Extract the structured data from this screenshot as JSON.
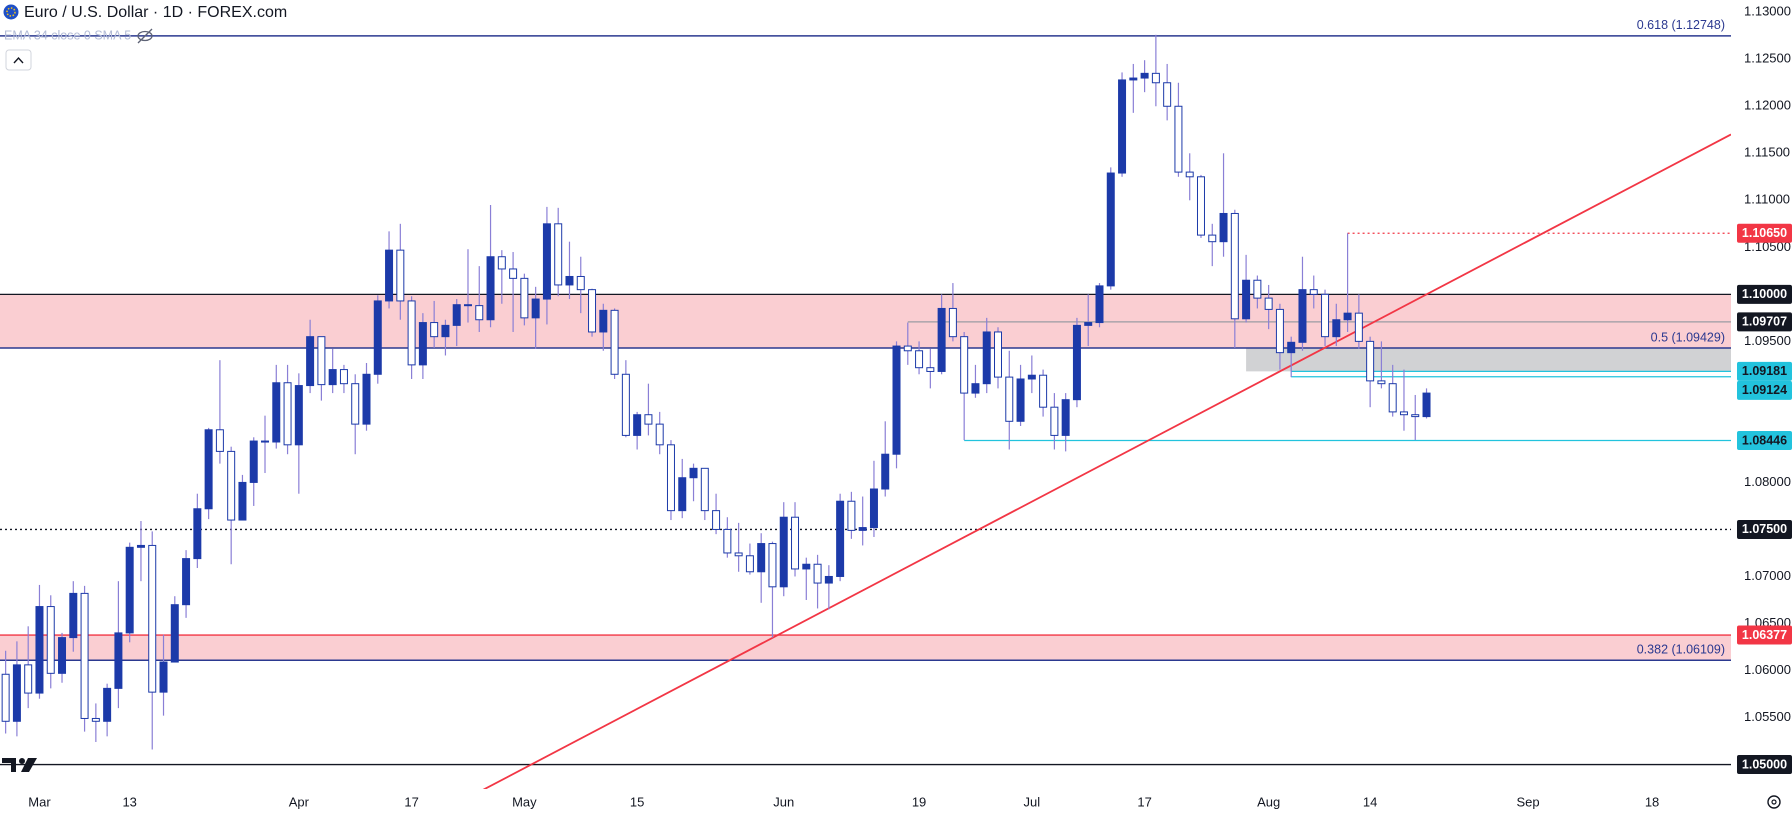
{
  "chart_data": {
    "type": "candlestick",
    "title": "Euro / U.S. Dollar · 1D · FOREX.com",
    "indicator_label": "EMA 34 close 0 SMA 5",
    "open": [
      1.0596,
      1.0546,
      1.0606,
      1.0576,
      1.0668,
      1.0597,
      1.0635,
      1.0682,
      1.0549,
      1.0546,
      1.0581,
      1.064,
      1.0731,
      1.0733,
      1.0577,
      1.0609,
      1.067,
      1.0719,
      1.0772,
      1.0856,
      1.0833,
      1.076,
      1.08,
      1.0844,
      1.0843,
      1.0906,
      1.084,
      1.0903,
      1.0955,
      1.0904,
      1.092,
      1.0905,
      1.0862,
      1.0915,
      1.0993,
      1.1047,
      1.0993,
      1.0925,
      1.097,
      1.0955,
      1.0967,
      1.0989,
      1.0988,
      1.0973,
      1.104,
      1.1027,
      1.1017,
      1.0975,
      1.0995,
      1.1075,
      1.101,
      1.1019,
      1.1005,
      1.096,
      1.0983,
      1.0915,
      1.085,
      1.0872,
      1.0862,
      1.084,
      1.077,
      1.0805,
      1.0815,
      1.077,
      1.075,
      1.0725,
      1.0722,
      1.0705,
      1.0735,
      1.0689,
      1.0763,
      1.0708,
      1.0713,
      1.0693,
      1.07,
      1.078,
      1.0749,
      1.0752,
      1.0793,
      1.083,
      1.0945,
      1.094,
      1.0922,
      1.0918,
      1.0985,
      1.0955,
      1.0895,
      1.0905,
      1.096,
      1.0912,
      1.0865,
      1.091,
      1.0914,
      1.088,
      1.085,
      1.0888,
      1.0967,
      1.097,
      1.1009,
      1.1129,
      1.1228,
      1.123,
      1.1235,
      1.1225,
      1.12,
      1.113,
      1.1125,
      1.1063,
      1.1056,
      1.1086,
      1.0974,
      1.1015,
      1.0996,
      1.0984,
      1.0938,
      1.0949,
      1.1005,
      1.1,
      1.0955,
      1.0973,
      1.098,
      1.095,
      1.0908,
      1.0905,
      1.0875,
      1.0872,
      1.087
    ],
    "high": [
      1.0621,
      1.0631,
      1.0647,
      1.0691,
      1.068,
      1.064,
      1.0695,
      1.069,
      1.0565,
      1.0586,
      1.0695,
      1.0736,
      1.0759,
      1.0748,
      1.0638,
      1.0679,
      1.0728,
      1.0788,
      1.0858,
      1.093,
      1.0838,
      1.0808,
      1.0848,
      1.0871,
      1.0925,
      1.0925,
      1.0916,
      1.0973,
      1.0955,
      1.0942,
      1.0925,
      1.0915,
      1.0927,
      1.0999,
      1.1067,
      1.1075,
      1.0998,
      1.098,
      1.0993,
      1.0973,
      1.0995,
      1.1048,
      1.103,
      1.1095,
      1.1047,
      1.1045,
      1.1022,
      1.1008,
      1.1093,
      1.1092,
      1.1056,
      1.104,
      1.1006,
      1.099,
      1.0985,
      1.093,
      1.0875,
      1.0905,
      1.0875,
      1.0845,
      1.0825,
      1.082,
      1.0815,
      1.0788,
      1.0763,
      1.0757,
      1.0735,
      1.0746,
      1.0737,
      1.0779,
      1.0779,
      1.072,
      1.0723,
      1.0712,
      1.0788,
      1.079,
      1.0785,
      1.0823,
      1.0865,
      1.095,
      1.097,
      1.095,
      1.0942,
      1.1,
      1.1012,
      1.096,
      1.0925,
      1.0975,
      1.0965,
      1.094,
      1.0925,
      1.0935,
      1.092,
      1.0895,
      1.0895,
      1.0975,
      1.1,
      1.1012,
      1.1135,
      1.1236,
      1.1245,
      1.1249,
      1.1276,
      1.1245,
      1.1225,
      1.115,
      1.1127,
      1.1075,
      1.115,
      1.109,
      1.1042,
      1.102,
      1.101,
      1.099,
      1.0955,
      1.104,
      1.102,
      1.1005,
      1.099,
      1.1065,
      1.1,
      1.0955,
      1.095,
      1.0925,
      1.092,
      1.0893,
      1.09
    ],
    "low": [
      1.0533,
      1.053,
      1.056,
      1.057,
      1.0581,
      1.0587,
      1.062,
      1.0535,
      1.0524,
      1.053,
      1.056,
      1.063,
      1.0695,
      1.0516,
      1.0552,
      1.061,
      1.0656,
      1.0709,
      1.0761,
      1.082,
      1.0713,
      1.076,
      1.0775,
      1.081,
      1.0836,
      1.083,
      1.0788,
      1.0895,
      1.0887,
      1.0895,
      1.0895,
      1.083,
      1.0855,
      1.0905,
      1.0985,
      1.0973,
      1.091,
      1.091,
      1.0943,
      1.0935,
      1.0945,
      1.097,
      1.096,
      1.0965,
      1.099,
      1.096,
      1.0967,
      1.0942,
      1.0968,
      1.0998,
      1.0995,
      1.098,
      1.0955,
      1.094,
      1.091,
      1.0848,
      1.0835,
      1.085,
      1.083,
      1.076,
      1.0762,
      1.078,
      1.076,
      1.0745,
      1.072,
      1.0705,
      1.0702,
      1.0672,
      1.0635,
      1.0679,
      1.07,
      1.0675,
      1.0666,
      1.0665,
      1.0695,
      1.074,
      1.0733,
      1.0742,
      1.0785,
      1.0815,
      1.0925,
      1.0915,
      1.09,
      1.0915,
      1.095,
      1.0845,
      1.089,
      1.0895,
      1.09,
      1.0835,
      1.086,
      1.0895,
      1.087,
      1.0835,
      1.0833,
      1.088,
      1.0945,
      1.0965,
      1.1005,
      1.1125,
      1.1193,
      1.1215,
      1.12,
      1.1185,
      1.1125,
      1.11,
      1.106,
      1.103,
      1.104,
      1.0943,
      1.097,
      1.0985,
      1.0963,
      1.092,
      1.0912,
      1.094,
      1.0985,
      1.0945,
      1.0945,
      1.096,
      1.0942,
      1.088,
      1.09,
      1.087,
      1.0855,
      1.0845,
      1.0868
    ],
    "close": [
      1.0546,
      1.0606,
      1.0576,
      1.0668,
      1.0597,
      1.0635,
      1.0682,
      1.0549,
      1.0546,
      1.0581,
      1.064,
      1.0731,
      1.0733,
      1.0577,
      1.0609,
      1.067,
      1.0719,
      1.0772,
      1.0856,
      1.0833,
      1.076,
      1.08,
      1.0844,
      1.0843,
      1.0906,
      1.084,
      1.0903,
      1.0955,
      1.0904,
      1.092,
      1.0905,
      1.0862,
      1.0915,
      1.0993,
      1.1047,
      1.0993,
      1.0925,
      1.097,
      1.0955,
      1.0967,
      1.0989,
      1.0988,
      1.0973,
      1.104,
      1.1027,
      1.1017,
      1.0975,
      1.0995,
      1.1075,
      1.101,
      1.1019,
      1.1005,
      1.096,
      1.0983,
      1.0915,
      1.085,
      1.0872,
      1.0862,
      1.084,
      1.077,
      1.0805,
      1.0815,
      1.077,
      1.075,
      1.0725,
      1.0722,
      1.0705,
      1.0735,
      1.0689,
      1.0763,
      1.0708,
      1.0713,
      1.0693,
      1.07,
      1.078,
      1.0749,
      1.0752,
      1.0793,
      1.083,
      1.0945,
      1.094,
      1.0922,
      1.0918,
      1.0985,
      1.0955,
      1.0895,
      1.0905,
      1.096,
      1.0912,
      1.0865,
      1.091,
      1.0914,
      1.088,
      1.085,
      1.0888,
      1.0967,
      1.097,
      1.1009,
      1.1129,
      1.1228,
      1.123,
      1.1235,
      1.1225,
      1.12,
      1.113,
      1.1125,
      1.1063,
      1.1056,
      1.1086,
      1.0974,
      1.1015,
      1.0996,
      1.0984,
      1.0938,
      1.0949,
      1.1005,
      1.1,
      1.0955,
      1.0973,
      1.098,
      1.095,
      1.0908,
      1.0905,
      1.0875,
      1.0872,
      1.087,
      1.0895
    ],
    "up_color": "#1c3aa9",
    "down_color": "#ffffff",
    "border_color": "#1c3aa9",
    "wick_color": "#8a7fd6",
    "xlim": [
      -0.5,
      153
    ],
    "ylim": [
      1.0474,
      1.1313
    ],
    "xticks": [
      {
        "value": 3,
        "label": "Mar"
      },
      {
        "value": 11,
        "label": "13"
      },
      {
        "value": 26,
        "label": "Apr"
      },
      {
        "value": 36,
        "label": "17"
      },
      {
        "value": 46,
        "label": "May"
      },
      {
        "value": 56,
        "label": "15"
      },
      {
        "value": 69,
        "label": "Jun"
      },
      {
        "value": 81,
        "label": "19"
      },
      {
        "value": 91,
        "label": "Jul"
      },
      {
        "value": 101,
        "label": "17"
      },
      {
        "value": 112,
        "label": "Aug"
      },
      {
        "value": 121,
        "label": "14"
      },
      {
        "value": 135,
        "label": "Sep"
      },
      {
        "value": 146,
        "label": "18"
      }
    ],
    "yticks": [
      {
        "value": 1.13,
        "label": "1.13000"
      },
      {
        "value": 1.125,
        "label": "1.12500"
      },
      {
        "value": 1.12,
        "label": "1.12000"
      },
      {
        "value": 1.115,
        "label": "1.11500"
      },
      {
        "value": 1.11,
        "label": "1.11000"
      },
      {
        "value": 1.105,
        "label": "1.10500"
      },
      {
        "value": 1.095,
        "label": "1.09500"
      },
      {
        "value": 1.09,
        "label": "1.09000"
      },
      {
        "value": 1.08,
        "label": "1.08000"
      },
      {
        "value": 1.07,
        "label": "1.07000"
      },
      {
        "value": 1.065,
        "label": "1.06500"
      },
      {
        "value": 1.06,
        "label": "1.06000"
      },
      {
        "value": 1.055,
        "label": "1.05500"
      }
    ],
    "grid": false,
    "zones": [
      {
        "from": 1.09429,
        "to": 1.1,
        "color": "#f9c5ca"
      },
      {
        "from": 1.06109,
        "to": 1.06377,
        "color": "#f9c5ca"
      },
      {
        "from": 1.09181,
        "to": 1.09429,
        "from_x": 110,
        "color": "#c9cacd"
      }
    ],
    "fib_levels": [
      {
        "value": 1.12748,
        "label": "0.618 (1.12748)"
      },
      {
        "value": 1.09429,
        "label": "0.5 (1.09429)"
      },
      {
        "value": 1.06109,
        "label": "0.382 (1.06109)"
      }
    ],
    "fib_color": "#2b3990",
    "levels": [
      {
        "value": 1.1065,
        "label": "1.10650",
        "from_x": 119,
        "line_color": "#f23645",
        "style": "dotted",
        "badge_color": "#f23645",
        "text_color": "#ffffff"
      },
      {
        "value": 1.1,
        "label": "1.10000",
        "from_x": -0.5,
        "line_color": "#131722",
        "style": "solid",
        "badge_color": "#131722",
        "text_color": "#ffffff"
      },
      {
        "value": 1.09707,
        "label": "1.09707",
        "from_x": 80,
        "line_color": "#9a9ca3",
        "style": "solid",
        "badge_color": "#131722",
        "text_color": "#ffffff"
      },
      {
        "value": 1.09181,
        "label": "1.09181",
        "from_x": 114,
        "line_color": "#22c3dd",
        "style": "solid",
        "badge_color": "#22c3dd",
        "text_color": "#131722"
      },
      {
        "value": 1.09124,
        "label": "1.09124",
        "from_x": 114,
        "line_color": "#22c3dd",
        "style": "solid",
        "badge_color": "#22c3dd",
        "text_color": "#131722"
      },
      {
        "value": 1.08446,
        "label": "1.08446",
        "from_x": 85,
        "line_color": "#22c3dd",
        "style": "solid",
        "badge_color": "#22c3dd",
        "text_color": "#131722"
      },
      {
        "value": 1.075,
        "label": "1.07500",
        "from_x": -0.5,
        "line_color": "#131722",
        "style": "dotted",
        "badge_color": "#131722",
        "text_color": "#ffffff"
      },
      {
        "value": 1.06377,
        "label": "1.06377",
        "from_x": -0.5,
        "line_color": "#f23645",
        "style": "solid",
        "badge_color": "#f23645",
        "text_color": "#ffffff"
      },
      {
        "value": 1.05,
        "label": "1.05000",
        "from_x": -0.5,
        "line_color": "#131722",
        "style": "solid",
        "badge_color": "#131722",
        "text_color": "#ffffff"
      }
    ],
    "trendline": {
      "x": [
        42,
        153
      ],
      "y": [
        1.0471,
        1.117
      ],
      "color": "#f23645"
    }
  }
}
